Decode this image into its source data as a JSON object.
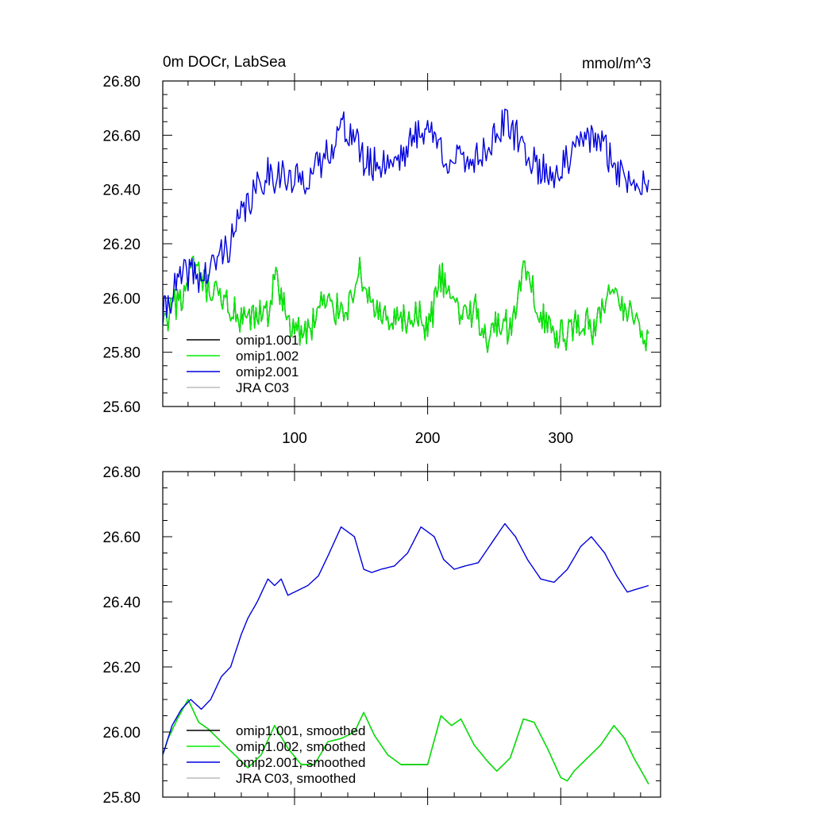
{
  "chart_data": [
    {
      "type": "line",
      "title_left": "0m DOCr, LabSea",
      "title_right": "mmol/m^3",
      "xlim": [
        1,
        375
      ],
      "ylim": [
        25.6,
        26.8
      ],
      "xticks": [
        100,
        200,
        300
      ],
      "xtick_labels": [
        "100",
        "200",
        "300"
      ],
      "yticks": [
        25.6,
        25.8,
        26.0,
        26.2,
        26.4,
        26.6,
        26.8
      ],
      "ytick_labels": [
        "25.60",
        "25.80",
        "26.00",
        "26.20",
        "26.40",
        "26.60",
        "26.80"
      ],
      "legend": [
        "omip1.001",
        "omip1.002",
        "omip2.001",
        "JRA C03"
      ],
      "series": [
        {
          "name": "omip1.001",
          "color": "#000000",
          "x": [
            1,
            10,
            20,
            25,
            30,
            40,
            50,
            60,
            70,
            80,
            85,
            90,
            100,
            110,
            120,
            130,
            140,
            148,
            155,
            165,
            175,
            185,
            195,
            200,
            210,
            215,
            225,
            235,
            245,
            255,
            262,
            272,
            278,
            285,
            295,
            305,
            315,
            325,
            335,
            345,
            355,
            362,
            366
          ],
          "values": [
            25.88,
            25.97,
            26.04,
            26.12,
            26.05,
            26.0,
            25.98,
            25.9,
            25.92,
            25.95,
            26.08,
            25.99,
            25.88,
            25.87,
            25.98,
            25.96,
            25.97,
            26.1,
            26.02,
            25.92,
            25.9,
            25.92,
            25.93,
            25.87,
            26.08,
            26.02,
            25.94,
            25.96,
            25.86,
            25.92,
            25.88,
            26.1,
            26.03,
            25.96,
            25.85,
            25.87,
            25.92,
            25.88,
            26.02,
            25.96,
            25.95,
            25.87,
            25.85
          ]
        },
        {
          "name": "omip1.002",
          "color": "#00ee00",
          "x": [
            1,
            10,
            20,
            25,
            30,
            40,
            50,
            60,
            70,
            80,
            85,
            90,
            100,
            110,
            120,
            130,
            140,
            148,
            155,
            165,
            175,
            185,
            195,
            200,
            210,
            215,
            225,
            235,
            245,
            255,
            262,
            272,
            278,
            285,
            295,
            305,
            315,
            325,
            335,
            345,
            355,
            362,
            366
          ],
          "values": [
            25.88,
            25.97,
            26.04,
            26.12,
            26.05,
            26.0,
            25.98,
            25.9,
            25.92,
            25.95,
            26.08,
            25.99,
            25.88,
            25.87,
            25.98,
            25.96,
            25.97,
            26.1,
            26.02,
            25.92,
            25.9,
            25.92,
            25.93,
            25.87,
            26.08,
            26.02,
            25.94,
            25.96,
            25.86,
            25.92,
            25.88,
            26.1,
            26.03,
            25.96,
            25.85,
            25.87,
            25.92,
            25.88,
            26.02,
            25.96,
            25.95,
            25.87,
            25.85
          ]
        },
        {
          "name": "omip2.001",
          "color": "#0000dd",
          "x": [
            1,
            8,
            15,
            22,
            30,
            37,
            45,
            52,
            60,
            65,
            72,
            80,
            85,
            90,
            95,
            100,
            110,
            118,
            125,
            135,
            145,
            152,
            158,
            165,
            175,
            185,
            195,
            205,
            212,
            220,
            228,
            238,
            248,
            258,
            266,
            275,
            285,
            295,
            305,
            315,
            323,
            333,
            342,
            350,
            358,
            366
          ],
          "values": [
            25.93,
            26.02,
            26.07,
            26.1,
            26.07,
            26.1,
            26.17,
            26.2,
            26.3,
            26.35,
            26.4,
            26.47,
            26.45,
            26.47,
            26.42,
            26.43,
            26.45,
            26.48,
            26.54,
            26.63,
            26.6,
            26.5,
            26.49,
            26.5,
            26.51,
            26.55,
            26.63,
            26.6,
            26.53,
            26.5,
            26.51,
            26.52,
            26.58,
            26.64,
            26.6,
            26.53,
            26.47,
            26.46,
            26.5,
            26.57,
            26.6,
            26.55,
            26.48,
            26.43,
            26.44,
            26.45
          ]
        },
        {
          "name": "JRA C03",
          "color": "#bbbbbb",
          "x": [],
          "values": []
        }
      ]
    },
    {
      "type": "line",
      "xlim": [
        1,
        375
      ],
      "ylim": [
        25.8,
        26.8
      ],
      "xticks": [
        100,
        200,
        300
      ],
      "xtick_labels": [],
      "yticks": [
        25.8,
        26.0,
        26.2,
        26.4,
        26.6,
        26.8
      ],
      "ytick_labels": [
        "25.80",
        "26.00",
        "26.20",
        "26.40",
        "26.60",
        "26.80"
      ],
      "legend": [
        "omip1.001, smoothed",
        "omip1.002, smoothed",
        "omip2.001, smoothed",
        "JRA C03, smoothed"
      ],
      "series": [
        {
          "name": "omip1.001, smoothed",
          "color": "#000000",
          "x": [
            1,
            5,
            12,
            20,
            28,
            35,
            45,
            55,
            65,
            75,
            85,
            95,
            105,
            115,
            125,
            135,
            145,
            152,
            160,
            170,
            180,
            190,
            200,
            210,
            218,
            225,
            235,
            245,
            252,
            262,
            272,
            280,
            290,
            300,
            305,
            310,
            320,
            330,
            340,
            348,
            355,
            362,
            366
          ],
          "values": [
            25.93,
            25.98,
            26.04,
            26.1,
            26.03,
            26.01,
            25.97,
            25.93,
            25.89,
            25.93,
            26.02,
            25.95,
            25.9,
            25.9,
            25.97,
            25.98,
            26.0,
            26.06,
            25.99,
            25.93,
            25.9,
            25.9,
            25.9,
            26.05,
            26.02,
            26.04,
            25.96,
            25.91,
            25.88,
            25.92,
            26.04,
            26.03,
            25.95,
            25.86,
            25.85,
            25.88,
            25.92,
            25.96,
            26.02,
            25.98,
            25.92,
            25.87,
            25.84
          ]
        },
        {
          "name": "omip1.002, smoothed",
          "color": "#00ee00",
          "x": [
            1,
            5,
            12,
            20,
            28,
            35,
            45,
            55,
            65,
            75,
            85,
            95,
            105,
            115,
            125,
            135,
            145,
            152,
            160,
            170,
            180,
            190,
            200,
            210,
            218,
            225,
            235,
            245,
            252,
            262,
            272,
            280,
            290,
            300,
            305,
            310,
            320,
            330,
            340,
            348,
            355,
            362,
            366
          ],
          "values": [
            25.93,
            25.98,
            26.04,
            26.1,
            26.03,
            26.01,
            25.97,
            25.93,
            25.89,
            25.93,
            26.02,
            25.95,
            25.9,
            25.9,
            25.97,
            25.98,
            26.0,
            26.06,
            25.99,
            25.93,
            25.9,
            25.9,
            25.9,
            26.05,
            26.02,
            26.04,
            25.96,
            25.91,
            25.88,
            25.92,
            26.04,
            26.03,
            25.95,
            25.86,
            25.85,
            25.88,
            25.92,
            25.96,
            26.02,
            25.98,
            25.92,
            25.87,
            25.84
          ]
        },
        {
          "name": "omip2.001, smoothed",
          "color": "#0000dd",
          "x": [
            1,
            8,
            15,
            22,
            30,
            37,
            45,
            52,
            60,
            65,
            72,
            80,
            85,
            90,
            95,
            100,
            110,
            118,
            125,
            135,
            145,
            152,
            158,
            165,
            175,
            185,
            195,
            205,
            212,
            220,
            228,
            238,
            248,
            258,
            266,
            275,
            285,
            295,
            305,
            315,
            323,
            333,
            342,
            350,
            358,
            366
          ],
          "values": [
            25.93,
            26.02,
            26.07,
            26.1,
            26.07,
            26.1,
            26.17,
            26.2,
            26.3,
            26.35,
            26.4,
            26.47,
            26.45,
            26.47,
            26.42,
            26.43,
            26.45,
            26.48,
            26.54,
            26.63,
            26.6,
            26.5,
            26.49,
            26.5,
            26.51,
            26.55,
            26.63,
            26.6,
            26.53,
            26.5,
            26.51,
            26.52,
            26.58,
            26.64,
            26.6,
            26.53,
            26.47,
            26.46,
            26.5,
            26.57,
            26.6,
            26.55,
            26.48,
            26.43,
            26.44,
            26.45
          ]
        },
        {
          "name": "JRA C03, smoothed",
          "color": "#bbbbbb",
          "x": [],
          "values": []
        }
      ]
    }
  ]
}
